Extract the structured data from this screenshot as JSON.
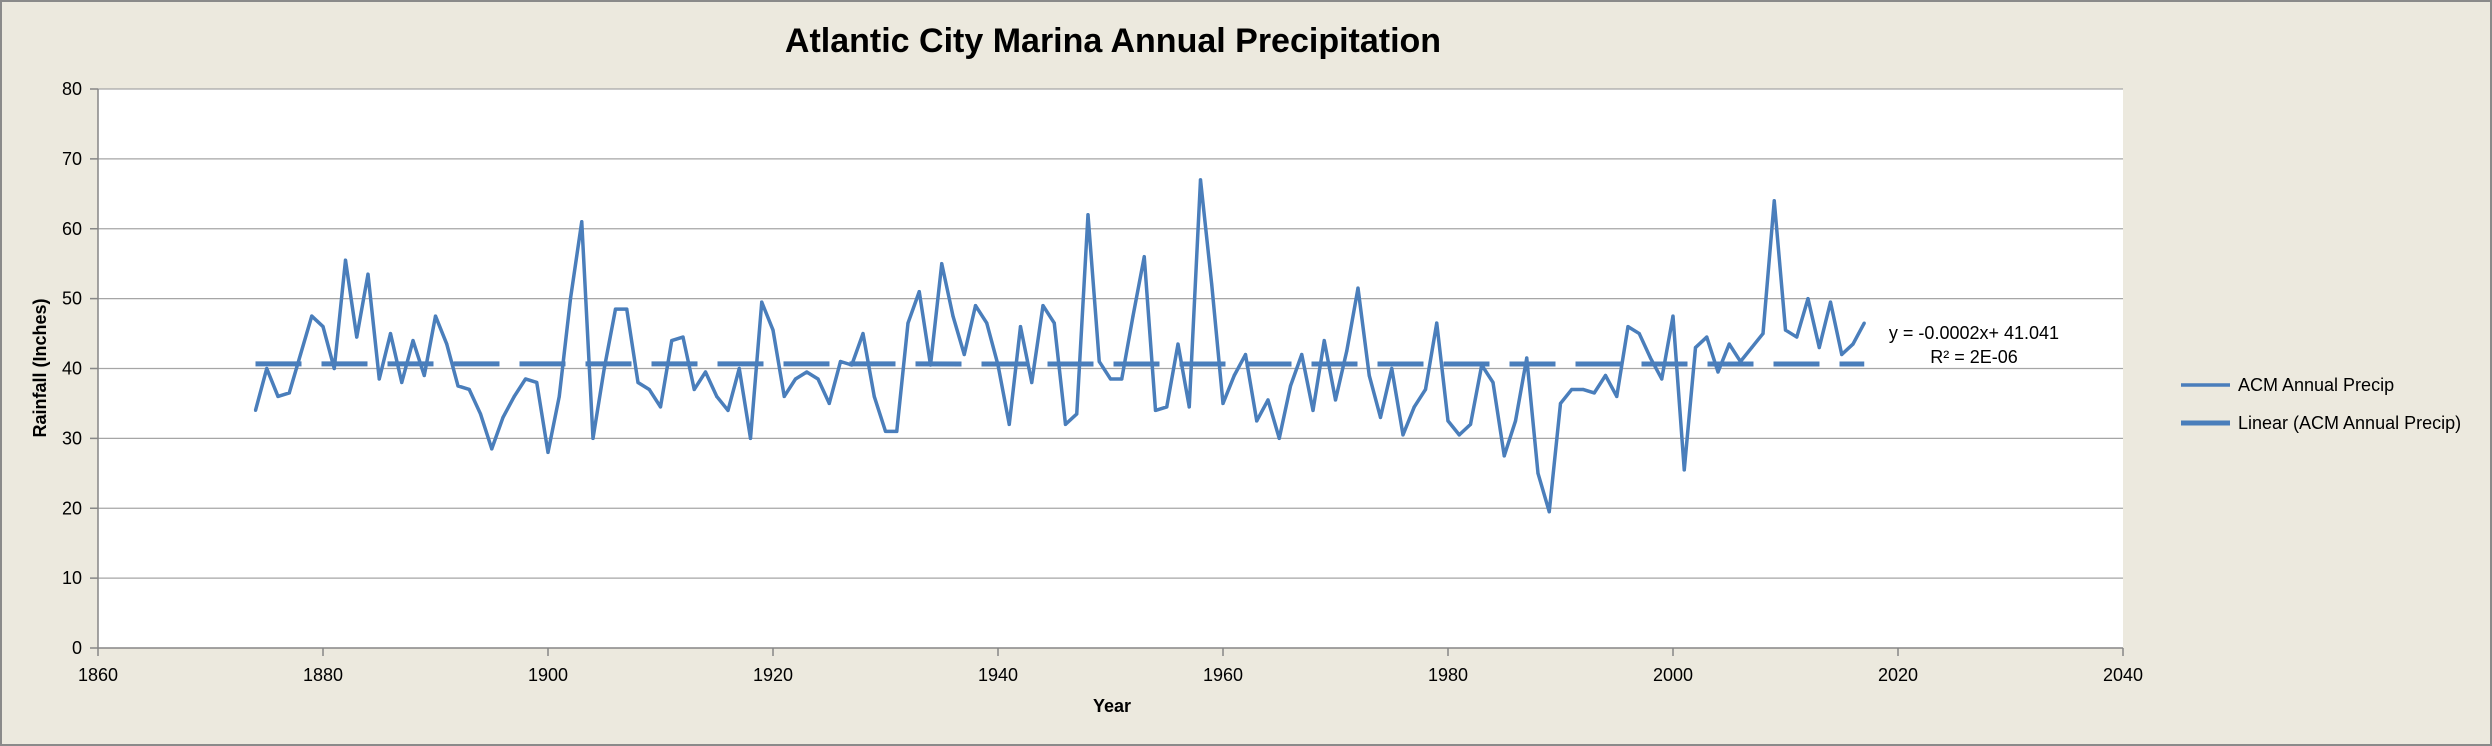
{
  "chart_data": {
    "type": "line",
    "title": "Atlantic City Marina Annual Precipitation",
    "xlabel": "Year",
    "ylabel": "Rainfall (Inches)",
    "xlim": [
      1860,
      2040
    ],
    "ylim": [
      0,
      80
    ],
    "xticks": [
      1860,
      1880,
      1900,
      1920,
      1940,
      1960,
      1980,
      2000,
      2020,
      2040
    ],
    "yticks": [
      0,
      10,
      20,
      30,
      40,
      50,
      60,
      70,
      80
    ],
    "grid": true,
    "legend_position": "right",
    "series": [
      {
        "name": "ACM Annual Precip",
        "color": "#4a7ebb",
        "style": "solid",
        "x": [
          1874,
          1875,
          1876,
          1877,
          1878,
          1879,
          1880,
          1881,
          1882,
          1883,
          1884,
          1885,
          1886,
          1887,
          1888,
          1889,
          1890,
          1891,
          1892,
          1893,
          1894,
          1895,
          1896,
          1897,
          1898,
          1899,
          1900,
          1901,
          1902,
          1903,
          1904,
          1905,
          1906,
          1907,
          1908,
          1909,
          1910,
          1911,
          1912,
          1913,
          1914,
          1915,
          1916,
          1917,
          1918,
          1919,
          1920,
          1921,
          1922,
          1923,
          1924,
          1925,
          1926,
          1927,
          1928,
          1929,
          1930,
          1931,
          1932,
          1933,
          1934,
          1935,
          1936,
          1937,
          1938,
          1939,
          1940,
          1941,
          1942,
          1943,
          1944,
          1945,
          1946,
          1947,
          1948,
          1949,
          1950,
          1951,
          1952,
          1953,
          1954,
          1955,
          1956,
          1957,
          1958,
          1959,
          1960,
          1961,
          1962,
          1963,
          1964,
          1965,
          1966,
          1967,
          1968,
          1969,
          1970,
          1971,
          1972,
          1973,
          1974,
          1975,
          1976,
          1977,
          1978,
          1979,
          1980,
          1981,
          1982,
          1983,
          1984,
          1985,
          1986,
          1987,
          1988,
          1989,
          1990,
          1991,
          1992,
          1993,
          1994,
          1995,
          1996,
          1997,
          1998,
          1999,
          2000,
          2001,
          2002,
          2003,
          2004,
          2005,
          2006,
          2007,
          2008,
          2009,
          2010,
          2011,
          2012,
          2013,
          2014,
          2015,
          2016,
          2017
        ],
        "y": [
          34,
          40,
          36,
          36.5,
          42,
          47.5,
          46,
          40,
          55.5,
          44.5,
          53.5,
          38.5,
          45,
          38,
          44,
          39,
          47.5,
          43.5,
          37.5,
          37,
          33.5,
          28.5,
          33,
          36,
          38.5,
          38,
          28,
          36,
          50,
          61,
          30,
          40,
          48.5,
          48.5,
          38,
          37,
          34.5,
          44,
          44.5,
          37,
          39.5,
          36,
          34,
          40,
          30,
          49.5,
          45.5,
          36,
          38.5,
          39.5,
          38.5,
          35,
          41,
          40.5,
          45,
          36,
          31,
          31,
          46.5,
          51,
          40.5,
          55,
          47.5,
          42,
          49,
          46.5,
          40.5,
          32,
          46,
          38,
          49,
          46.5,
          32,
          33.5,
          62,
          41,
          38.5,
          38.5,
          47.5,
          56,
          34,
          34.5,
          43.5,
          34.5,
          67,
          52,
          35,
          39,
          42,
          32.5,
          35.5,
          30,
          37.5,
          42,
          34,
          44,
          35.5,
          42.5,
          51.5,
          39,
          33,
          40,
          30.5,
          34.5,
          37,
          46.5,
          32.5,
          30.5,
          32,
          40.5,
          38,
          27.5,
          32.5,
          41.5,
          25,
          19.5,
          35,
          37,
          37,
          36.5,
          39,
          36,
          46,
          45,
          41.5,
          38.5,
          47.5,
          25.5,
          43,
          44.5,
          39.5,
          43.5,
          41,
          43,
          45,
          64,
          45.5,
          44.5,
          50,
          43,
          49.5,
          42,
          43.5,
          46.5
        ]
      },
      {
        "name": "Linear (ACM Annual Precip)",
        "color": "#4a7ebb",
        "style": "dashed",
        "x": [
          1874,
          2017
        ],
        "y": [
          40.666,
          40.637
        ]
      }
    ],
    "annotations": {
      "equation": "y = -0.0002x+ 41.041",
      "r_squared": "R² = 2E-06"
    }
  }
}
